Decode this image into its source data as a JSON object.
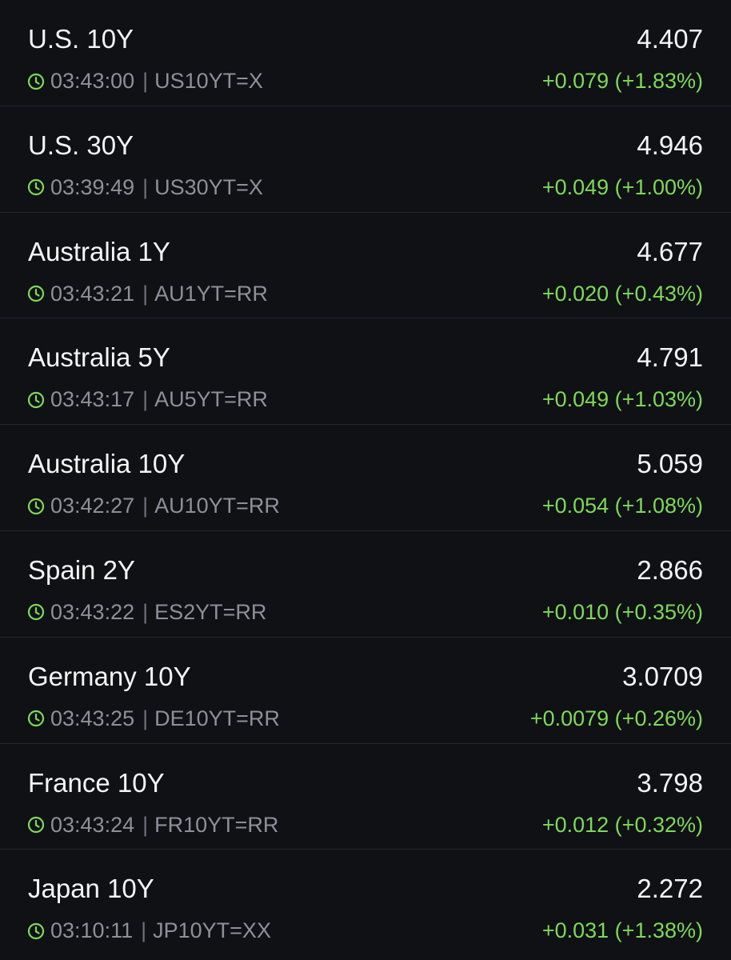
{
  "colors": {
    "background": "#0f1115",
    "positive": "#7ed957",
    "muted": "#8d9097",
    "text": "#f4f4f6"
  },
  "items": [
    {
      "name": "U.S. 10Y",
      "price": "4.407",
      "time": "03:43:00",
      "ticker": "US10YT=X",
      "change": "+0.079 (+1.83%)"
    },
    {
      "name": "U.S. 30Y",
      "price": "4.946",
      "time": "03:39:49",
      "ticker": "US30YT=X",
      "change": "+0.049 (+1.00%)"
    },
    {
      "name": "Australia 1Y",
      "price": "4.677",
      "time": "03:43:21",
      "ticker": "AU1YT=RR",
      "change": "+0.020 (+0.43%)"
    },
    {
      "name": "Australia 5Y",
      "price": "4.791",
      "time": "03:43:17",
      "ticker": "AU5YT=RR",
      "change": "+0.049 (+1.03%)"
    },
    {
      "name": "Australia 10Y",
      "price": "5.059",
      "time": "03:42:27",
      "ticker": "AU10YT=RR",
      "change": "+0.054 (+1.08%)"
    },
    {
      "name": "Spain 2Y",
      "price": "2.866",
      "time": "03:43:22",
      "ticker": "ES2YT=RR",
      "change": "+0.010 (+0.35%)"
    },
    {
      "name": "Germany 10Y",
      "price": "3.0709",
      "time": "03:43:25",
      "ticker": "DE10YT=RR",
      "change": "+0.0079 (+0.26%)"
    },
    {
      "name": "France 10Y",
      "price": "3.798",
      "time": "03:43:24",
      "ticker": "FR10YT=RR",
      "change": "+0.012 (+0.32%)"
    },
    {
      "name": "Japan 10Y",
      "price": "2.272",
      "time": "03:10:11",
      "ticker": "JP10YT=XX",
      "change": "+0.031 (+1.38%)"
    }
  ]
}
